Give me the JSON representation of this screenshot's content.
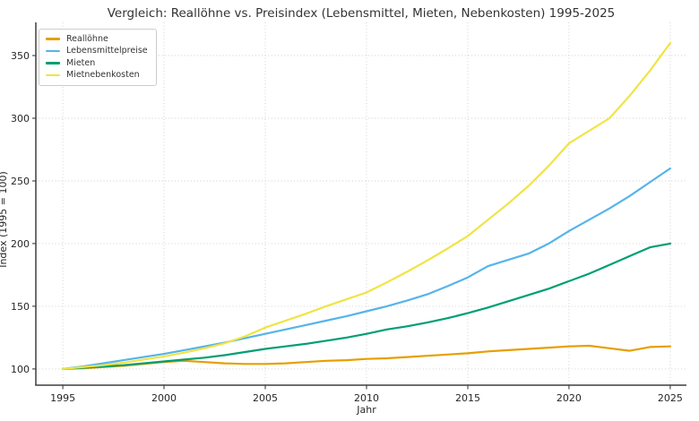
{
  "chart": {
    "title": "Vergleich: Reallöhne vs. Preisindex (Lebensmittel, Mieten, Nebenkosten) 1995-2025",
    "xlabel": "Jahr",
    "ylabel": "Index (1995 = 100)"
  },
  "chart_data": {
    "type": "line",
    "title": "Vergleich: Reallöhne vs. Preisindex (Lebensmittel, Mieten, Nebenkosten) 1995-2025",
    "xlabel": "Jahr",
    "ylabel": "Index (1995 = 100)",
    "grid": true,
    "legend_position": "upper-left",
    "x_ticks": [
      1995,
      2000,
      2005,
      2010,
      2015,
      2020,
      2025
    ],
    "y_ticks": [
      100,
      150,
      200,
      250,
      300,
      350
    ],
    "xlim": [
      1993.67,
      2025.8
    ],
    "ylim": [
      87.1,
      376.4
    ],
    "x": [
      1995,
      1996,
      1997,
      1998,
      1999,
      2000,
      2001,
      2002,
      2003,
      2004,
      2005,
      2006,
      2007,
      2008,
      2009,
      2010,
      2011,
      2012,
      2013,
      2014,
      2015,
      2016,
      2017,
      2018,
      2019,
      2020,
      2021,
      2022,
      2023,
      2024,
      2025
    ],
    "series": [
      {
        "name": "Reallöhne",
        "color": "#E69F00",
        "values": [
          100,
          100.5,
          101.5,
          102.5,
          104,
          105.5,
          106.5,
          105.5,
          104.5,
          104,
          104,
          104.5,
          105.5,
          106.5,
          107,
          108,
          108.5,
          109.5,
          110.5,
          111.5,
          112.5,
          114,
          115,
          116,
          117,
          118,
          118.5,
          116.5,
          114.5,
          117.5,
          118
        ]
      },
      {
        "name": "Lebensmittelpreise",
        "color": "#56B4E9",
        "values": [
          100,
          102,
          104.5,
          107,
          109.5,
          112,
          115,
          118,
          121,
          124.5,
          128,
          131.5,
          135,
          138.5,
          142,
          146,
          150,
          154.5,
          159.5,
          166,
          173,
          182,
          187,
          192,
          200,
          210,
          219,
          228,
          238,
          249,
          260
        ]
      },
      {
        "name": "Mieten",
        "color": "#009E73",
        "values": [
          100,
          101,
          102,
          103,
          104.5,
          106,
          107.5,
          109,
          111,
          113.5,
          116,
          118,
          120,
          122.5,
          125,
          128,
          131.5,
          134,
          137,
          140.5,
          144.5,
          149,
          154,
          159,
          164,
          170,
          176,
          183,
          190,
          197,
          200
        ]
      },
      {
        "name": "Mietnebenkosten",
        "color": "#F0E442",
        "values": [
          100,
          101.5,
          103,
          105,
          107.5,
          110,
          113,
          116.5,
          120.5,
          126,
          133,
          138.5,
          144,
          150,
          155.5,
          161,
          169,
          177.5,
          186.5,
          196,
          206,
          219,
          232,
          246,
          262,
          280,
          290,
          300,
          318,
          338,
          360
        ]
      }
    ]
  }
}
